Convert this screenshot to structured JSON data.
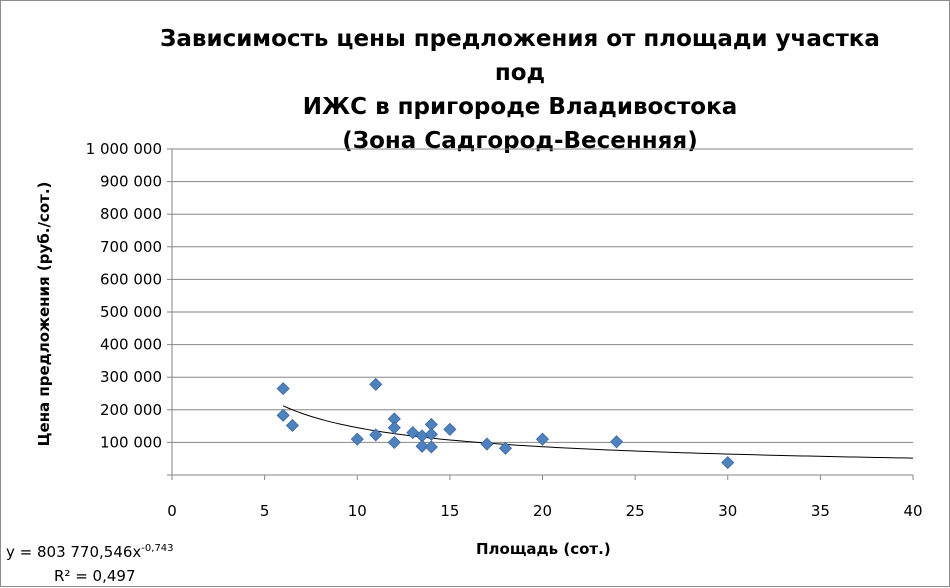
{
  "chart_data": {
    "type": "scatter",
    "title": "Зависимость цены предложения от площади участка под\nИЖС в пригороде Владивостока\n(Зона Садгород-Весенняя)",
    "xlabel": "Площадь (сот.)",
    "ylabel": "Цена предложения (руб./сот.)",
    "xlim": [
      0,
      40
    ],
    "ylim": [
      0,
      1000000
    ],
    "x_ticks": [
      "0",
      "5",
      "10",
      "15",
      "20",
      "25",
      "30",
      "35",
      "40"
    ],
    "y_ticks": [
      "",
      "100 000",
      "200 000",
      "300 000",
      "400 000",
      "500 000",
      "600 000",
      "700 000",
      "800 000",
      "900 000",
      "1 000 000"
    ],
    "grid": "horizontal",
    "marker_color": "#4f81bd",
    "trend_color": "#000000",
    "series": [
      {
        "points": [
          {
            "x": 6,
            "y": 265000
          },
          {
            "x": 6,
            "y": 183000
          },
          {
            "x": 6.5,
            "y": 152000
          },
          {
            "x": 10,
            "y": 110000
          },
          {
            "x": 11,
            "y": 278000
          },
          {
            "x": 11,
            "y": 123000
          },
          {
            "x": 12,
            "y": 172000
          },
          {
            "x": 12,
            "y": 145000
          },
          {
            "x": 12,
            "y": 100000
          },
          {
            "x": 13,
            "y": 130000
          },
          {
            "x": 13.5,
            "y": 120000
          },
          {
            "x": 13.5,
            "y": 88000
          },
          {
            "x": 14,
            "y": 155000
          },
          {
            "x": 14,
            "y": 125000
          },
          {
            "x": 14,
            "y": 86000
          },
          {
            "x": 15,
            "y": 140000
          },
          {
            "x": 17,
            "y": 95000
          },
          {
            "x": 18,
            "y": 82000
          },
          {
            "x": 20,
            "y": 110000
          },
          {
            "x": 24,
            "y": 102000
          },
          {
            "x": 30,
            "y": 38000
          }
        ]
      }
    ],
    "trendline": {
      "type": "power",
      "coefficient": 803770.546,
      "exponent": -0.743,
      "x_from": 6,
      "x_to": 40,
      "equation_prefix": "y = 803 770,546x",
      "equation_exponent": "-0,743",
      "r2_label": "R² = 0,497"
    }
  }
}
